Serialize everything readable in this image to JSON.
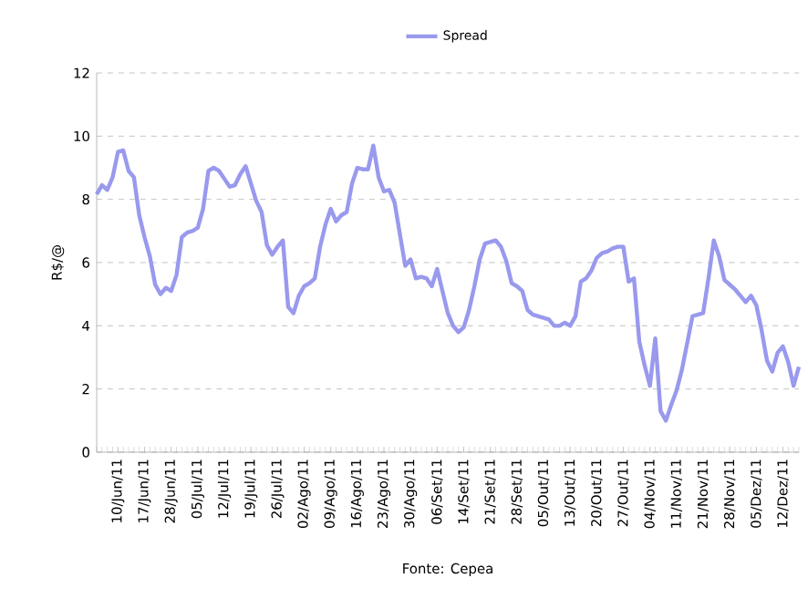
{
  "chart_data": {
    "type": "line",
    "ylabel": "R$/@",
    "grid": "y",
    "legend": "top",
    "ylim": [
      0,
      12
    ],
    "yticks": [
      0,
      2,
      4,
      6,
      8,
      10,
      12
    ],
    "categories": [
      null,
      null,
      null,
      null,
      "10/Jun/11",
      null,
      null,
      null,
      null,
      "17/Jun/11",
      null,
      null,
      null,
      null,
      "28/Jun/11",
      null,
      null,
      null,
      null,
      "05/Jul/11",
      null,
      null,
      null,
      null,
      "12/Jul/11",
      null,
      null,
      null,
      null,
      "19/Jul/11",
      null,
      null,
      null,
      null,
      "26/Jul/11",
      null,
      null,
      null,
      null,
      "02/Ago/11",
      null,
      null,
      null,
      null,
      "09/Ago/11",
      null,
      null,
      null,
      null,
      "16/Ago/11",
      null,
      null,
      null,
      null,
      "23/Ago/11",
      null,
      null,
      null,
      null,
      "30/Ago/11",
      null,
      null,
      null,
      null,
      "06/Set/11",
      null,
      null,
      null,
      null,
      "14/Set/11",
      null,
      null,
      null,
      null,
      "21/Set/11",
      null,
      null,
      null,
      null,
      "28/Set/11",
      null,
      null,
      null,
      null,
      "05/Out/11",
      null,
      null,
      null,
      null,
      "13/Out/11",
      null,
      null,
      null,
      null,
      "20/Out/11",
      null,
      null,
      null,
      null,
      "27/Out/11",
      null,
      null,
      null,
      null,
      "04/Nov/11",
      null,
      null,
      null,
      null,
      "11/Nov/11",
      null,
      null,
      null,
      null,
      "21/Nov/11",
      null,
      null,
      null,
      null,
      "28/Nov/11",
      null,
      null,
      null,
      null,
      "05/Dez/11",
      null,
      null,
      null,
      null,
      "12/Dez/11",
      null,
      null,
      null
    ],
    "series": [
      {
        "name": "Spread",
        "color": "#9999ee",
        "values": [
          8.16,
          8.45,
          8.3,
          8.7,
          9.5,
          9.55,
          8.9,
          8.7,
          7.5,
          6.8,
          6.2,
          5.3,
          5.0,
          5.2,
          5.1,
          5.6,
          6.8,
          6.95,
          7.0,
          7.1,
          7.7,
          8.9,
          9.0,
          8.9,
          8.65,
          8.4,
          8.45,
          8.8,
          9.05,
          8.5,
          7.95,
          7.6,
          6.55,
          6.25,
          6.5,
          6.7,
          4.6,
          4.4,
          4.95,
          5.25,
          5.35,
          5.5,
          6.5,
          7.2,
          7.7,
          7.3,
          7.5,
          7.6,
          8.5,
          9.0,
          8.95,
          8.95,
          9.7,
          8.7,
          8.25,
          8.3,
          7.9,
          6.9,
          5.9,
          6.1,
          5.5,
          5.55,
          5.5,
          5.25,
          5.8,
          5.1,
          4.4,
          4.0,
          3.8,
          3.95,
          4.5,
          5.25,
          6.1,
          6.6,
          6.65,
          6.7,
          6.5,
          6.05,
          5.35,
          5.25,
          5.1,
          4.5,
          4.35,
          4.3,
          4.25,
          4.2,
          4.0,
          4.0,
          4.1,
          4.0,
          4.3,
          5.4,
          5.5,
          5.75,
          6.15,
          6.3,
          6.35,
          6.45,
          6.5,
          6.5,
          5.4,
          5.5,
          3.5,
          2.75,
          2.1,
          3.6,
          1.3,
          1.0,
          1.5,
          1.95,
          2.6,
          3.45,
          4.3,
          4.35,
          4.4,
          5.5,
          6.7,
          6.2,
          5.45,
          5.3,
          5.15,
          4.95,
          4.75,
          4.95,
          4.65,
          3.85,
          2.9,
          2.55,
          3.15,
          3.35,
          2.85,
          2.1,
          2.7
        ]
      }
    ],
    "annotations": [
      "Fonte: Cepea"
    ]
  }
}
